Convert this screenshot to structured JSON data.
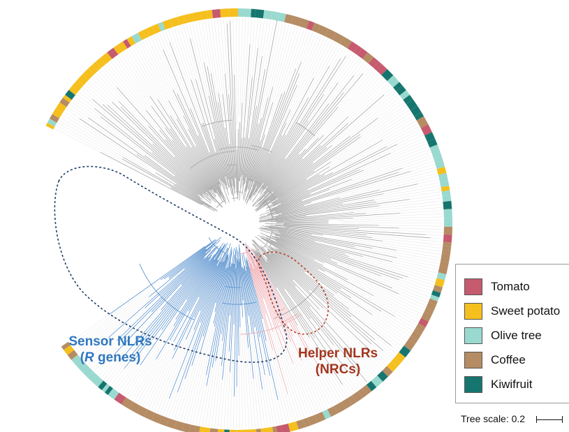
{
  "annotations": {
    "sensor_title": "Sensor NLRs",
    "sensor_sub_italic": "R",
    "sensor_sub_rest": " genes)",
    "sensor_sub_open": "(",
    "helper_title": "Helper NLRs",
    "helper_sub": "(NRCs)"
  },
  "legend": {
    "items": [
      {
        "label": "Tomato",
        "color": "#c65a6e"
      },
      {
        "label": "Sweet potato",
        "color": "#f5bf1e"
      },
      {
        "label": "Olive tree",
        "color": "#9ad9cf"
      },
      {
        "label": "Coffee",
        "color": "#b58c64"
      },
      {
        "label": "Kiwifruit",
        "color": "#16766f"
      }
    ]
  },
  "scale": {
    "label": "Tree scale: 0.2"
  },
  "colors": {
    "sensor_branches": "#5b93cf",
    "helper_branches": "#eeaab0",
    "other_branches": "#a8a8a8",
    "guide_lines": "#e3e3e3",
    "sensor_outline": "#1f3e66",
    "helper_outline": "#b8402a"
  }
}
